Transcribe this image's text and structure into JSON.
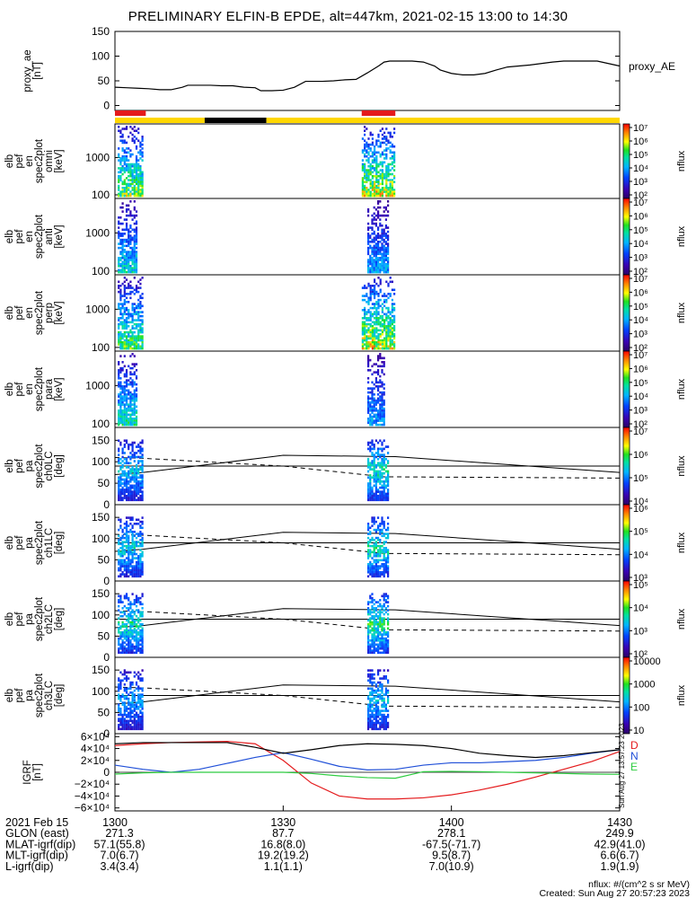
{
  "title": "PRELIMINARY ELFIN-B EPDE, alt=447km, 2021-02-15 13:00 to 14:30",
  "chart_data": {
    "type": "line",
    "time_axis": {
      "start": "13:00",
      "end": "14:30",
      "tick_labels": [
        "1300",
        "1330",
        "1400",
        "1430"
      ],
      "tick_minutes": [
        0,
        30,
        60,
        90
      ]
    },
    "panels": [
      {
        "id": "proxy_ae",
        "ylabel": [
          "proxy_ae",
          "[nT]"
        ],
        "legend": "proxy_AE",
        "ylim": [
          -10,
          150
        ],
        "yticks": [
          0,
          50,
          100,
          150
        ],
        "x_min": [
          0,
          2,
          4,
          6,
          8,
          10,
          12,
          13,
          15,
          17,
          19,
          21,
          23,
          25,
          26,
          28,
          30,
          32,
          34,
          35,
          37,
          39,
          41,
          43,
          45,
          47,
          48,
          49,
          51,
          53,
          55,
          57,
          58,
          60,
          62,
          64,
          66,
          68,
          70,
          72,
          74,
          76,
          78,
          80,
          82,
          84,
          86,
          88,
          90
        ],
        "values": [
          37,
          36,
          35,
          34,
          32,
          32,
          37,
          41,
          41,
          41,
          40,
          40,
          37,
          36,
          30,
          30,
          31,
          37,
          49,
          49,
          49,
          50,
          52,
          53,
          66,
          80,
          88,
          90,
          90,
          90,
          88,
          80,
          72,
          65,
          62,
          62,
          65,
          72,
          78,
          80,
          82,
          85,
          88,
          90,
          90,
          90,
          90,
          85,
          80
        ]
      },
      {
        "id": "fgm_bar",
        "type": "science-zone bar",
        "segments": [
          {
            "from": 0,
            "to": 16,
            "color": "#ffd700"
          },
          {
            "from": 16,
            "to": 27,
            "color": "#000000"
          },
          {
            "from": 27,
            "to": 90,
            "color": "#ffd700"
          }
        ],
        "markers": [
          {
            "from": 0,
            "to": 5.5,
            "color": "#e41a1c"
          },
          {
            "from": 44,
            "to": 50,
            "color": "#e41a1c"
          }
        ]
      },
      {
        "id": "omni",
        "type": "heatmap",
        "ylabel": [
          "elb",
          "pef",
          "en",
          "spec2plot",
          "omni",
          "[keV]"
        ],
        "ytick_labels": [
          "100",
          "1000"
        ],
        "colorbar": {
          "label": "nflux",
          "tick_labels": [
            "10²",
            "10³",
            "10⁴",
            "10⁵",
            "10⁶",
            "10⁷"
          ],
          "min_exp": 2,
          "max_exp": 7
        },
        "bursts": [
          {
            "t0": 0.5,
            "t1": 5,
            "level": 0.75
          },
          {
            "t0": 44,
            "t1": 50,
            "level": 0.85
          }
        ]
      },
      {
        "id": "anti",
        "type": "heatmap",
        "ylabel": [
          "elb",
          "pef",
          "en",
          "spec2plot",
          "anti",
          "[keV]"
        ],
        "ytick_labels": [
          "100",
          "1000"
        ],
        "colorbar": {
          "label": "nflux",
          "tick_labels": [
            "10²",
            "10³",
            "10⁴",
            "10⁵",
            "10⁶",
            "10⁷"
          ],
          "min_exp": 2,
          "max_exp": 7
        },
        "bursts": [
          {
            "t0": 0.5,
            "t1": 4,
            "level": 0.55
          },
          {
            "t0": 45,
            "t1": 49,
            "level": 0.45
          }
        ]
      },
      {
        "id": "perp",
        "type": "heatmap",
        "ylabel": [
          "elb",
          "pef",
          "en",
          "spec2plot",
          "perp",
          "[keV]"
        ],
        "ytick_labels": [
          "100",
          "1000"
        ],
        "colorbar": {
          "label": "nflux",
          "tick_labels": [
            "10²",
            "10³",
            "10⁴",
            "10⁵",
            "10⁶",
            "10⁷"
          ],
          "min_exp": 2,
          "max_exp": 7
        },
        "bursts": [
          {
            "t0": 0.5,
            "t1": 5,
            "level": 0.7
          },
          {
            "t0": 44,
            "t1": 50,
            "level": 0.85
          }
        ]
      },
      {
        "id": "para",
        "type": "heatmap",
        "ylabel": [
          "elb",
          "pef",
          "en",
          "spec2plot",
          "para",
          "[keV]"
        ],
        "ytick_labels": [
          "100",
          "1000"
        ],
        "colorbar": {
          "label": "nflux",
          "tick_labels": [
            "10²",
            "10³",
            "10⁴",
            "10⁵",
            "10⁶",
            "10⁷"
          ],
          "min_exp": 2,
          "max_exp": 7
        },
        "bursts": [
          {
            "t0": 0.5,
            "t1": 4,
            "level": 0.6
          },
          {
            "t0": 45,
            "t1": 48,
            "level": 0.45
          }
        ]
      },
      {
        "id": "ch0LC",
        "type": "heatmap",
        "ylabel": [
          "elb",
          "pef",
          "pa",
          "spec2plot",
          "ch0LC",
          "[deg]"
        ],
        "ylim": [
          0,
          180
        ],
        "yticks": [
          0,
          50,
          100,
          150
        ],
        "colorbar": {
          "label": "nflux",
          "tick_labels": [
            "10⁴",
            "10⁵",
            "10⁶",
            "10⁷"
          ],
          "min_exp": 3.5,
          "max_exp": 7
        },
        "bursts": [
          {
            "t0": 0.5,
            "t1": 5,
            "level": 0.5
          },
          {
            "t0": 45,
            "t1": 49,
            "level": 0.6
          }
        ]
      },
      {
        "id": "ch1LC",
        "type": "heatmap",
        "ylabel": [
          "elb",
          "pef",
          "pa",
          "spec2plot",
          "ch1LC",
          "[deg]"
        ],
        "ylim": [
          0,
          180
        ],
        "yticks": [
          0,
          50,
          100,
          150
        ],
        "colorbar": {
          "label": "nflux",
          "tick_labels": [
            "10³",
            "10⁴",
            "10⁵",
            "10⁶"
          ],
          "min_exp": 3,
          "max_exp": 6
        },
        "bursts": [
          {
            "t0": 0.5,
            "t1": 5,
            "level": 0.55
          },
          {
            "t0": 45,
            "t1": 49,
            "level": 0.6
          }
        ]
      },
      {
        "id": "ch2LC",
        "type": "heatmap",
        "ylabel": [
          "elb",
          "pef",
          "pa",
          "spec2plot",
          "ch2LC",
          "[deg]"
        ],
        "ylim": [
          0,
          180
        ],
        "yticks": [
          0,
          50,
          100,
          150
        ],
        "colorbar": {
          "label": "nflux",
          "tick_labels": [
            "10²",
            "10³",
            "10⁴",
            "10⁵"
          ],
          "min_exp": 2,
          "max_exp": 5
        },
        "bursts": [
          {
            "t0": 0.5,
            "t1": 5,
            "level": 0.6
          },
          {
            "t0": 45,
            "t1": 49,
            "level": 0.65
          }
        ]
      },
      {
        "id": "ch3LC",
        "type": "heatmap",
        "ylabel": [
          "elb",
          "pef",
          "pa",
          "spec2plot",
          "ch3LC",
          "[deg]"
        ],
        "ylim": [
          0,
          180
        ],
        "yticks": [
          0,
          50,
          100,
          150
        ],
        "colorbar": {
          "label": "nflux",
          "tick_labels": [
            "10",
            "100",
            "1000",
            "10000"
          ],
          "min_exp": 1,
          "max_exp": 4
        },
        "bursts": [
          {
            "t0": 0.5,
            "t1": 5,
            "level": 0.45
          },
          {
            "t0": 45,
            "t1": 49,
            "level": 0.5
          }
        ]
      },
      {
        "id": "igrf",
        "ylabel": [
          "IGRF",
          "[nT]"
        ],
        "ylim": [
          -65000,
          65000
        ],
        "ytick_labels": [
          "6×10⁴",
          "4×10⁴",
          "2×10⁴",
          "0",
          "−2×10⁴",
          "−4×10⁴",
          "−6×10⁴"
        ],
        "ytick_values": [
          60000,
          40000,
          20000,
          0,
          -20000,
          -40000,
          -60000
        ],
        "x_min": [
          0,
          5,
          10,
          15,
          20,
          25,
          30,
          35,
          40,
          45,
          50,
          55,
          60,
          65,
          70,
          75,
          80,
          85,
          90
        ],
        "series": [
          {
            "name": "D",
            "color": "#e41a1c",
            "values": [
              45000,
              48000,
              50000,
              51000,
              52000,
              48000,
              20000,
              -18000,
              -40000,
              -45000,
              -45000,
              -43000,
              -38000,
              -30000,
              -20000,
              -8000,
              5000,
              18000,
              35000
            ]
          },
          {
            "name": "N",
            "color": "#1f4fd8",
            "values": [
              12000,
              5000,
              0,
              5000,
              15000,
              25000,
              33000,
              22000,
              10000,
              4000,
              5000,
              12000,
              16000,
              16000,
              18000,
              20000,
              25000,
              32000,
              38000
            ]
          },
          {
            "name": "E",
            "color": "#2ecc40",
            "values": [
              -3000,
              -1000,
              0,
              0,
              0,
              0,
              0,
              -2000,
              -6000,
              -9000,
              -10000,
              1000,
              1500,
              1000,
              0,
              -1000,
              -2000,
              -3000,
              -3500
            ]
          },
          {
            "name": "",
            "color": "#000000",
            "values": [
              48000,
              50000,
              50000,
              50000,
              50000,
              42000,
              32000,
              38000,
              45000,
              48000,
              47000,
              45000,
              40000,
              32000,
              28000,
              25000,
              28000,
              33000,
              38000
            ]
          }
        ],
        "hline": 0
      }
    ],
    "orbit_table": {
      "rows": [
        {
          "label": "2021 Feb 15",
          "values": [
            "1300",
            "1330",
            "1400",
            "1430"
          ]
        },
        {
          "label": "GLON (east)",
          "values": [
            "271.3",
            "87.7",
            "278.1",
            "249.9"
          ]
        },
        {
          "label": "MLAT-igrf(dip)",
          "values": [
            "57.1(55.8)",
            "16.8(8.0)",
            "-67.5(-71.7)",
            "42.9(41.0)"
          ]
        },
        {
          "label": "MLT-igrf(dip)",
          "values": [
            "7.0(6.7)",
            "19.2(19.2)",
            "9.5(8.7)",
            "6.6(6.7)"
          ]
        },
        {
          "label": "L-igrf(dip)",
          "values": [
            "3.4(3.4)",
            "1.1(1.1)",
            "7.0(10.9)",
            "1.9(1.9)"
          ]
        }
      ]
    },
    "units_note": "nflux: #/(cm^2 s sr MeV)",
    "created_note": "Created: Sun Aug 27 20:57:23 2023",
    "side_stamp": "Sun Aug 27 13:57:23 2023"
  }
}
